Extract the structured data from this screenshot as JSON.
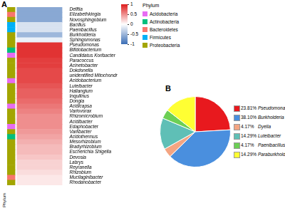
{
  "chart_data": [
    {
      "type": "heatmap",
      "panel": "A",
      "rows": [
        "Delftia",
        "Elizabethkingia",
        "Novosphingobium",
        "Bacillus",
        "Paenibacillus",
        "Burkholderia",
        "Sphingomonas",
        "Pseudomonas",
        "Bifidobacterium",
        "Candidatus Koribacter",
        "Paracoccus",
        "Acinetobacter",
        "Dokdonella",
        "unidentified Mitochondria",
        "Acidobacterium",
        "Luteibacter",
        "Haliangium",
        "Inquilinus",
        "Dongia",
        "Acidicapsa",
        "Variovorax",
        "Rhizomicrobium",
        "Acidibacter",
        "Edaphobacter",
        "Variibacter",
        "Acidothermus",
        "Mesorhizobium",
        "Bradyrhizobium",
        "Escherichia Shigella",
        "Devosia",
        "Labrys",
        "Reyranella",
        "Rhizobium",
        "Mucilaginibacter",
        "Rhodanobacter"
      ],
      "values": [
        -0.6,
        -0.6,
        -0.6,
        -0.2,
        -0.2,
        -0.5,
        -0.1,
        0.9,
        0.9,
        0.9,
        0.85,
        0.85,
        0.8,
        0.8,
        0.8,
        0.75,
        0.7,
        0.7,
        0.65,
        0.6,
        0.55,
        0.5,
        0.5,
        0.5,
        0.45,
        0.4,
        0.35,
        0.3,
        0.3,
        0.25,
        0.2,
        0.2,
        0.15,
        0.1,
        0.1
      ],
      "phylum": [
        "Proteobacteria",
        "Bacteroidetes",
        "Proteobacteria",
        "Firmicutes",
        "Firmicutes",
        "Proteobacteria",
        "Proteobacteria",
        "Proteobacteria",
        "Actinobacteria",
        "Acidobacteria",
        "Proteobacteria",
        "Proteobacteria",
        "Proteobacteria",
        "Proteobacteria",
        "Acidobacteria",
        "Proteobacteria",
        "Proteobacteria",
        "Proteobacteria",
        "Proteobacteria",
        "Acidobacteria",
        "Proteobacteria",
        "Proteobacteria",
        "Proteobacteria",
        "Acidobacteria",
        "Proteobacteria",
        "Actinobacteria",
        "Proteobacteria",
        "Proteobacteria",
        "Proteobacteria",
        "Proteobacteria",
        "Proteobacteria",
        "Proteobacteria",
        "Proteobacteria",
        "Bacteroidetes",
        "Proteobacteria"
      ],
      "strip_label": "Phylum",
      "legend_title": "Phylum",
      "phyla": [
        {
          "name": "Acidobacteria",
          "color": "#e76bf3"
        },
        {
          "name": "Actinobacteria",
          "color": "#00bf7d"
        },
        {
          "name": "Bacteroidetes",
          "color": "#f8766d"
        },
        {
          "name": "Firmicutes",
          "color": "#00b0f6"
        },
        {
          "name": "Proteobacteria",
          "color": "#a3a500"
        }
      ],
      "colorbar": {
        "range": [
          -1,
          1
        ],
        "ticks": [
          1,
          0.5,
          0,
          -0.5,
          -1
        ]
      }
    },
    {
      "type": "pie",
      "panel": "B",
      "legend": "right",
      "categories": [
        "Pseudomonas",
        "Burkholderia",
        "Dyella",
        "Luteibacter",
        "Paenibacillus",
        "Paraburkholderia"
      ],
      "values": [
        23.81,
        38.1,
        4.17,
        14.29,
        4.17,
        14.29
      ],
      "value_labels": [
        "23.81%",
        "38.10%",
        "4.17%",
        "14.29%",
        "4.17%",
        "14.29%"
      ],
      "colors": [
        "#e8191e",
        "#4a8fde",
        "#f4a582",
        "#5fbfb6",
        "#6ccf55",
        "#ffff33"
      ]
    }
  ]
}
